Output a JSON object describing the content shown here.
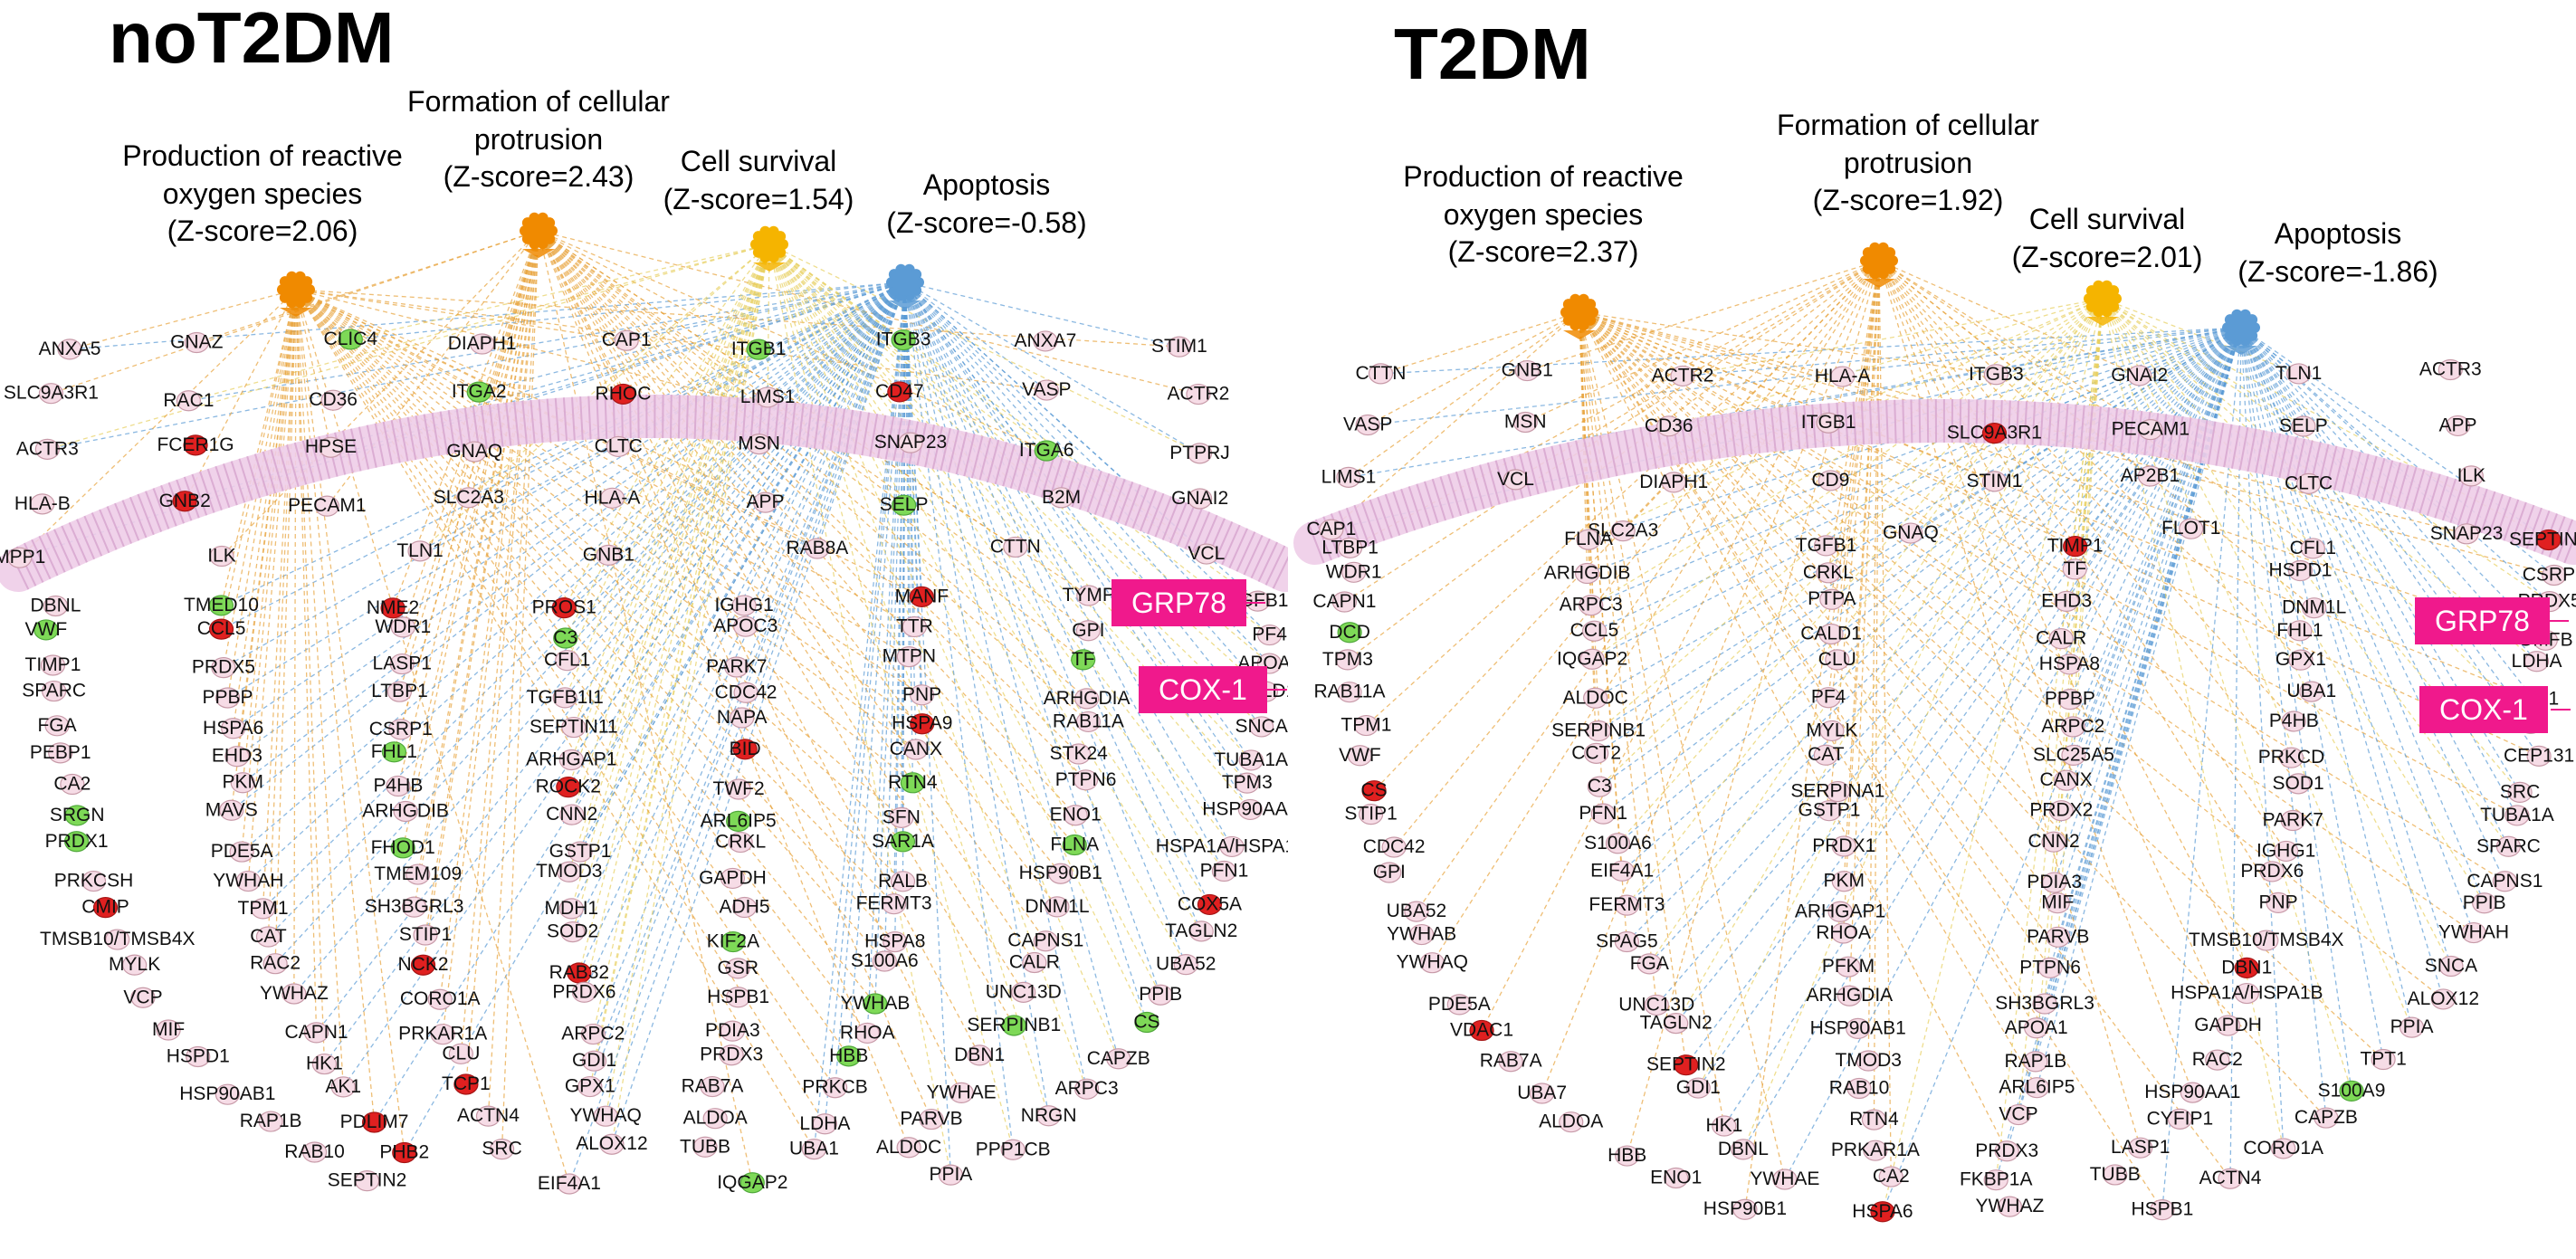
{
  "colors": {
    "orange": "#f08a00",
    "gold": "#f5b400",
    "blue": "#5b9bd5",
    "red": "#e02020",
    "green": "#7ed957",
    "pink": "#f6dce6",
    "membrane": "#eecde8",
    "magenta": "#f0198c",
    "edge_orange": "#e8a33c",
    "edge_blue": "#5b9bd5",
    "edge_yellow": "#e8d060"
  },
  "panels": [
    {
      "title": "noT2DM",
      "hubs": [
        {
          "label": [
            "Production of reactive",
            "oxygen species",
            "(Z-score=2.06)"
          ],
          "color": "orange"
        },
        {
          "label": [
            "Formation of cellular",
            "protrusion",
            "(Z-score=2.43)"
          ],
          "color": "orange"
        },
        {
          "label": [
            "Cell survival",
            "(Z-score=1.54)"
          ],
          "color": "gold"
        },
        {
          "label": [
            "Apoptosis",
            "(Z-score=-0.58)"
          ],
          "color": "blue"
        }
      ],
      "callouts": [
        "GRP78",
        "COX-1"
      ],
      "membrane_genes": [
        "ANXA5",
        "GNAZ",
        "CLIC4",
        "DIAPH1",
        "CAP1",
        "ITGB1",
        "ITGB3",
        "ANXA7",
        "STIM1",
        "SLC9A3R1",
        "RAC1",
        "CD36",
        "ITGA2",
        "RHOC",
        "LIMS1",
        "CD47",
        "VASP",
        "ACTR2",
        "ACTR3",
        "FCER1G",
        "HPSE",
        "GNAQ",
        "CLTC",
        "MSN",
        "SNAP23",
        "ITGA6",
        "PTPRJ",
        "HLA-B",
        "GNB2",
        "PECAM1",
        "SLC2A3",
        "HLA-A",
        "APP",
        "SELP",
        "B2M",
        "GNAI2",
        "MPP1",
        "ILK",
        "TLN1",
        "GNB1",
        "RAB8A",
        "CTTN",
        "VCL"
      ],
      "intra_genes": [
        "DBNL",
        "TMED10",
        "NME2",
        "PROS1",
        "IGHG1",
        "MANF",
        "TYMP",
        "TGFB1",
        "VWF",
        "CCL5",
        "WDR1",
        "C3",
        "APOC3",
        "TTR",
        "GPI",
        "PF4",
        "TIMP1",
        "PRDX5",
        "LASP1",
        "CFL1",
        "PARK7",
        "MTPN",
        "TF",
        "APOA1",
        "SPARC",
        "PPBP",
        "LTBP1",
        "TGFB1I1",
        "CDC42",
        "PNP",
        "ARHGDIA",
        "CALD1",
        "FGA",
        "HSPA6",
        "CSRP1",
        "SEPTIN11",
        "NAPA",
        "HSPA9",
        "RAB11A",
        "SNCA",
        "PEBP1",
        "EHD3",
        "FHL1",
        "ARHGAP1",
        "BID",
        "CANX",
        "STK24",
        "TUBA1A",
        "CA2",
        "PKM",
        "P4HB",
        "ROCK2",
        "TWF2",
        "RTN4",
        "PTPN6",
        "TPM3",
        "SRGN",
        "MAVS",
        "ARHGDIB",
        "CNN2",
        "ARL6IP5",
        "SFN",
        "ENO1",
        "HSP90AA1",
        "PRDX1",
        "PDE5A",
        "FHOD1",
        "GSTP1",
        "CRKL",
        "SAR1A",
        "FLNA",
        "HSPA1A/HSPA1B",
        "PRKCSH",
        "YWHAH",
        "TMEM109",
        "TMOD3",
        "GAPDH",
        "RALB",
        "HSP90B1",
        "PFN1",
        "CMIP",
        "TPM1",
        "SH3BGRL3",
        "MDH1",
        "ADH5",
        "FERMT3",
        "DNM1L",
        "COX5A",
        "TMSB10/TMSB4X",
        "CAT",
        "STIP1",
        "SOD2",
        "KIF2A",
        "HSPA8",
        "CAPNS1",
        "TAGLN2",
        "MYLK",
        "RAC2",
        "NCK2",
        "RAB32",
        "GSR",
        "S100A6",
        "CALR",
        "UBA52",
        "VCP",
        "YWHAZ",
        "CORO1A",
        "PRDX6",
        "HSPB1",
        "YWHAB",
        "UNC13D",
        "PPIB",
        "MIF",
        "CAPN1",
        "PRKAR1A",
        "ARPC2",
        "PDIA3",
        "RHOA",
        "SERPINB1",
        "CS",
        "HSPD1",
        "HK1",
        "CLU",
        "GDI1",
        "PRDX3",
        "HBB",
        "DBN1",
        "CAPZB",
        "HSP90AB1",
        "AK1",
        "TCP1",
        "GPX1",
        "RAB7A",
        "PRKCB",
        "YWHAE",
        "ARPC3",
        "RAP1B",
        "PDLIM7",
        "ACTN4",
        "YWHAQ",
        "ALDOA",
        "LDHA",
        "PARVB",
        "NRGN",
        "RAB10",
        "PHB2",
        "SRC",
        "ALOX12",
        "TUBB",
        "UBA1",
        "ALDOC",
        "PPP1CB",
        "SEPTIN2",
        "EIF4A1",
        "IQGAP2",
        "PPIA"
      ]
    },
    {
      "title": "T2DM",
      "hubs": [
        {
          "label": [
            "Production of reactive",
            "oxygen species",
            "(Z-score=2.37)"
          ],
          "color": "orange"
        },
        {
          "label": [
            "Formation of cellular",
            "protrusion",
            "(Z-score=1.92)"
          ],
          "color": "orange"
        },
        {
          "label": [
            "Cell survival",
            "(Z-score=2.01)"
          ],
          "color": "gold"
        },
        {
          "label": [
            "Apoptosis",
            "(Z-score=-1.86)"
          ],
          "color": "blue"
        }
      ],
      "callouts": [
        "GRP78",
        "COX-1"
      ],
      "membrane_genes": [
        "CTTN",
        "GNB1",
        "ACTR2",
        "HLA-A",
        "ITGB3",
        "GNAI2",
        "TLN1",
        "ACTR3",
        "VASP",
        "MSN",
        "CD36",
        "ITGB1",
        "SLC9A3R1",
        "PECAM1",
        "SELP",
        "APP",
        "LIMS1",
        "VCL",
        "DIAPH1",
        "CD9",
        "STIM1",
        "AP2B1",
        "CLTC",
        "ILK",
        "CAP1",
        "SLC2A3",
        "GNAQ",
        "FLOT1",
        "SNAP23"
      ],
      "intra_genes": [
        "LTBP1",
        "FLNA",
        "TGFB1",
        "TIMP1",
        "CFL1",
        "SEPTIN7",
        "WDR1",
        "ARHGDIB",
        "CRKL",
        "TF",
        "HSPD1",
        "CSRP1",
        "CAPN1",
        "ARPC3",
        "PTPA",
        "EHD3",
        "DNM1L",
        "PRDX5",
        "DCD",
        "CCL5",
        "CALD1",
        "CALR",
        "FHL1",
        "GMFB",
        "TPM3",
        "IQGAP2",
        "CLU",
        "HSPA8",
        "GPX1",
        "LDHA",
        "RAB11A",
        "ALDOC",
        "PF4",
        "PPBP",
        "UBA1",
        "EHD1",
        "TPM1",
        "SERPINB1",
        "MYLK",
        "ARPC2",
        "P4HB",
        "PIP",
        "VWF",
        "CCT2",
        "CAT",
        "SLC25A5",
        "PRKCD",
        "CEP131",
        "CS",
        "C3",
        "SERPINA1",
        "CANX",
        "SOD1",
        "SRC",
        "STIP1",
        "PFN1",
        "GSTP1",
        "PRDX2",
        "PARK7",
        "TUBA1A",
        "CDC42",
        "S100A6",
        "PRDX1",
        "CNN2",
        "IGHG1",
        "SPARC",
        "GPI",
        "EIF4A1",
        "PKM",
        "PDIA3",
        "PRDX6",
        "CAPNS1",
        "UBA52",
        "FERMT3",
        "ARHGAP1",
        "MIF",
        "PNP",
        "PPIB",
        "YWHAB",
        "SPAG5",
        "RHOA",
        "PARVB",
        "TMSB10/TMSB4X",
        "YWHAH",
        "YWHAQ",
        "FGA",
        "PFKM",
        "PTPN6",
        "DBN1",
        "SNCA",
        "PDE5A",
        "UNC13D",
        "ARHGDIA",
        "SH3BGRL3",
        "HSPA1A/HSPA1B",
        "ALOX12",
        "VDAC1",
        "TAGLN2",
        "HSP90AB1",
        "APOA1",
        "GAPDH",
        "PPIA",
        "RAB7A",
        "SEPTIN2",
        "TMOD3",
        "RAP1B",
        "RAC2",
        "TPT1",
        "UBA7",
        "GDI1",
        "RAB10",
        "ARL6IP5",
        "HSP90AA1",
        "S100A9",
        "ALDOA",
        "HK1",
        "RTN4",
        "VCP",
        "CYFIP1",
        "CAPZB",
        "HBB",
        "DBNL",
        "PRKAR1A",
        "PRDX3",
        "LASP1",
        "CORO1A",
        "ENO1",
        "YWHAE",
        "CA2",
        "FKBP1A",
        "TUBB",
        "ACTN4",
        "HSP90B1",
        "HSPA6",
        "YWHAZ",
        "HSPB1"
      ]
    }
  ]
}
